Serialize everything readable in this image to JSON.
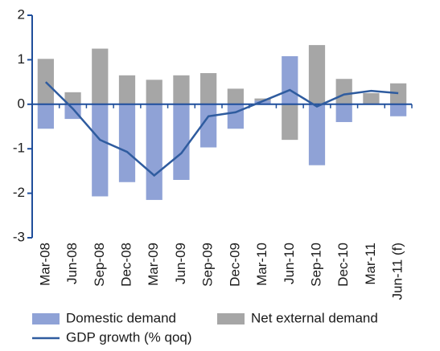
{
  "chart_data": {
    "type": "bar-line",
    "categories": [
      "Mar-08",
      "Jun-08",
      "Sep-08",
      "Dec-08",
      "Mar-09",
      "Jun-09",
      "Sep-09",
      "Dec-09",
      "Mar-10",
      "Jun-10",
      "Sep-10",
      "Dec-10",
      "Mar-11",
      "Jun-11 (f)"
    ],
    "series": [
      {
        "name": "Domestic demand",
        "type": "bar",
        "color": "#8fa2d6",
        "values": [
          -0.55,
          -0.33,
          -2.07,
          -1.75,
          -2.15,
          -1.7,
          -0.97,
          -0.55,
          0.08,
          1.08,
          -1.37,
          -0.4,
          0,
          -0.27
        ]
      },
      {
        "name": "Net external demand",
        "type": "bar",
        "color": "#a6a6a6",
        "values": [
          1.02,
          0.27,
          1.25,
          0.65,
          0.55,
          0.65,
          0.7,
          0.35,
          0.05,
          -0.8,
          1.33,
          0.57,
          0.25,
          0.47
        ]
      },
      {
        "name": "GDP growth (% qoq)",
        "type": "line",
        "color": "#2f5c9f",
        "values": [
          0.5,
          -0.1,
          -0.8,
          -1.07,
          -1.6,
          -1.1,
          -0.27,
          -0.18,
          0.07,
          0.32,
          -0.05,
          0.22,
          0.3,
          0.25
        ]
      }
    ],
    "ylim": [
      -3,
      2
    ],
    "yticks": [
      -3,
      -2,
      -1,
      0,
      1,
      2
    ],
    "stacked": true
  }
}
